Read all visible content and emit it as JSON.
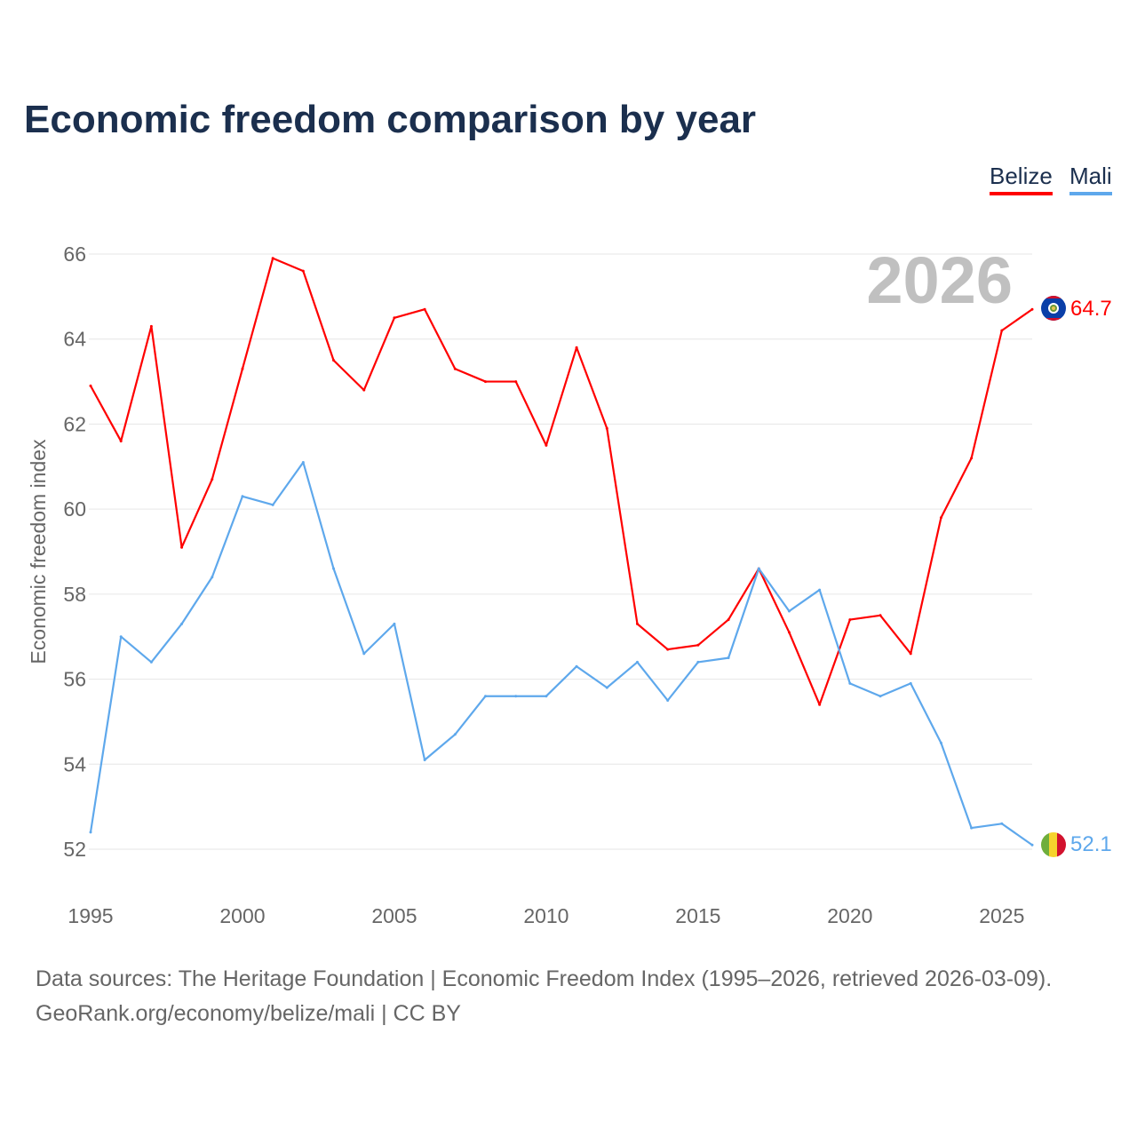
{
  "chart_data": {
    "type": "line",
    "title": "Economic freedom comparison by year",
    "xlabel": "",
    "ylabel": "Economic freedom index",
    "year_watermark": "2026",
    "x": [
      1995,
      1996,
      1997,
      1998,
      1999,
      2000,
      2001,
      2002,
      2003,
      2004,
      2005,
      2006,
      2007,
      2008,
      2009,
      2010,
      2011,
      2012,
      2013,
      2014,
      2015,
      2016,
      2017,
      2018,
      2019,
      2020,
      2021,
      2022,
      2023,
      2024,
      2025,
      2026
    ],
    "xlim": [
      1995,
      2026
    ],
    "ylim": [
      52,
      66
    ],
    "xticks": [
      1995,
      2000,
      2005,
      2010,
      2015,
      2020,
      2025
    ],
    "yticks": [
      52,
      54,
      56,
      58,
      60,
      62,
      64,
      66
    ],
    "grid": true,
    "legend_placement": "top-right",
    "series": [
      {
        "name": "Belize",
        "color": "#ff0000",
        "end_label": "64.7",
        "values": [
          62.9,
          61.6,
          64.3,
          59.1,
          60.7,
          63.3,
          65.9,
          65.6,
          63.5,
          62.8,
          64.5,
          64.7,
          63.3,
          63.0,
          63.0,
          61.5,
          63.8,
          61.9,
          57.3,
          56.7,
          56.8,
          57.4,
          58.6,
          57.1,
          55.4,
          57.4,
          57.5,
          56.6,
          59.8,
          61.2,
          64.2,
          64.7
        ]
      },
      {
        "name": "Mali",
        "color": "#5ea8ec",
        "end_label": "52.1",
        "values": [
          52.4,
          57.0,
          56.4,
          57.3,
          58.4,
          60.3,
          60.1,
          61.1,
          58.6,
          56.6,
          57.3,
          54.1,
          54.7,
          55.6,
          55.6,
          55.6,
          56.3,
          55.8,
          56.4,
          55.5,
          56.4,
          56.5,
          58.6,
          57.6,
          58.1,
          55.9,
          55.6,
          55.9,
          54.5,
          52.5,
          52.6,
          52.1
        ]
      }
    ]
  },
  "footer": {
    "line1": "Data sources: The Heritage Foundation | Economic Freedom Index (1995–2026, retrieved 2026-03-09).",
    "line2": "GeoRank.org/economy/belize/mali | CC BY"
  }
}
